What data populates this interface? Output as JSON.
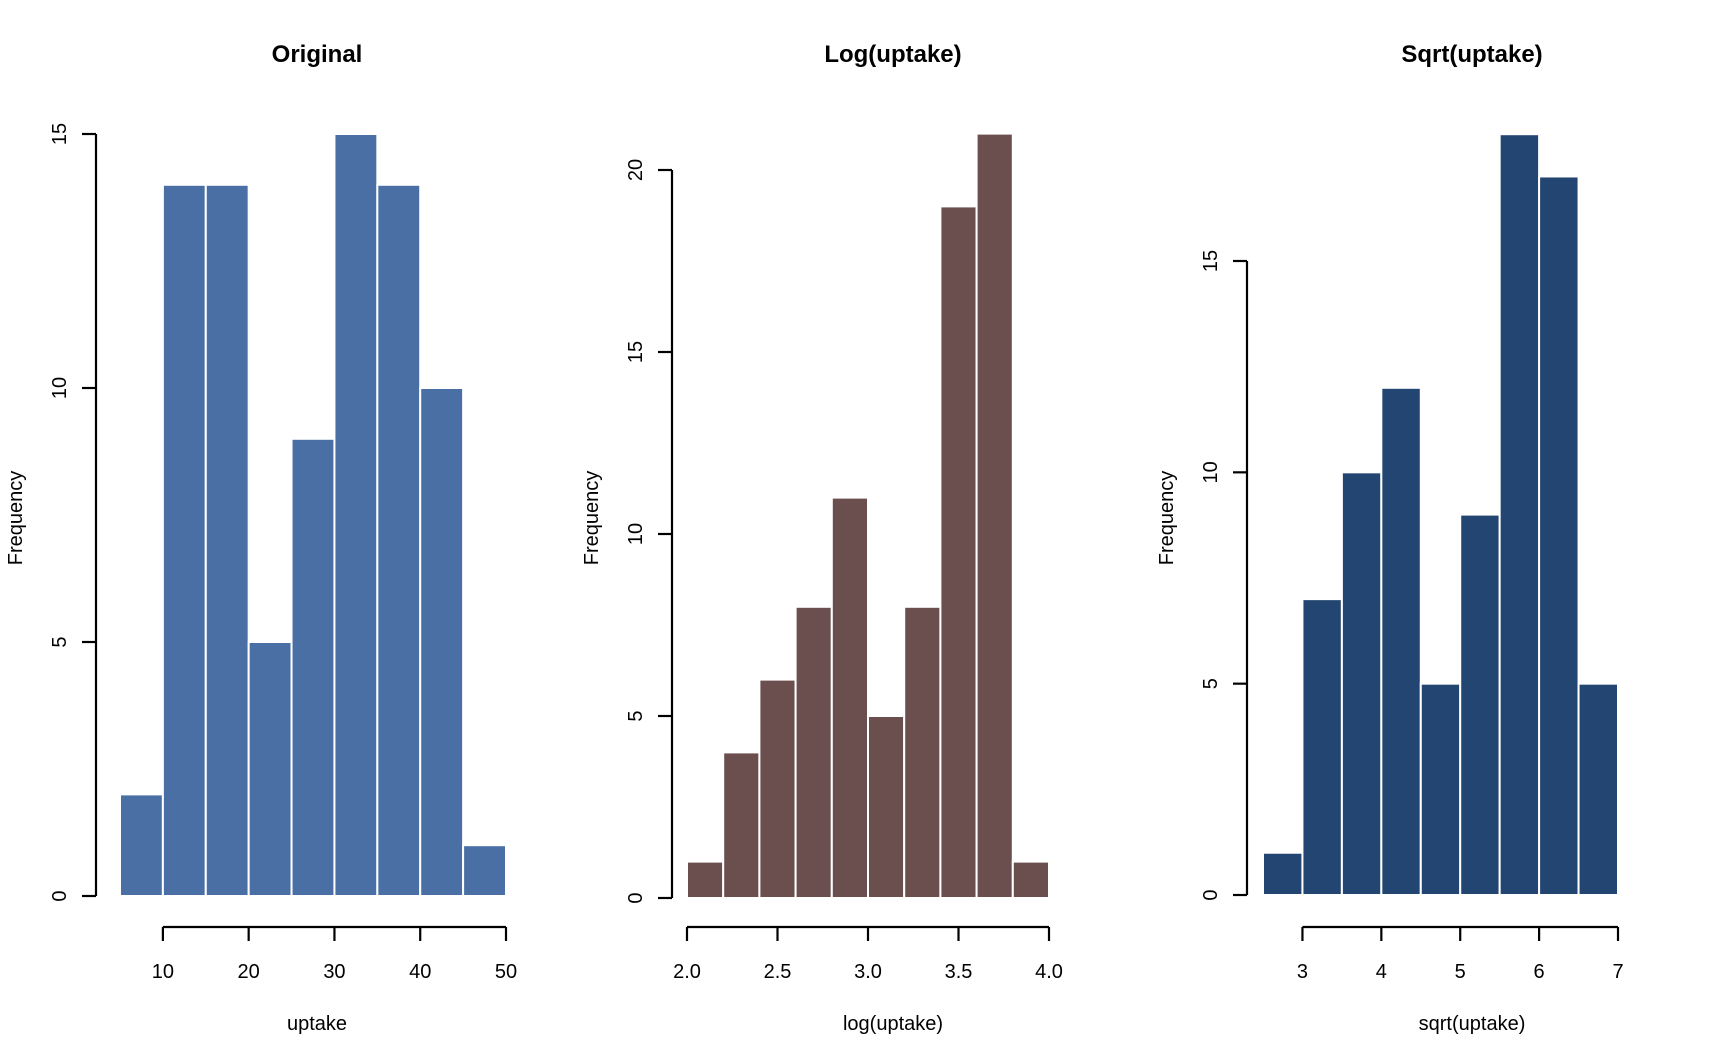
{
  "chart_data": [
    {
      "type": "bar",
      "subtype": "histogram",
      "title": "Original",
      "xlabel": "uptake",
      "ylabel": "Frequency",
      "color": "#4a6fa5",
      "bin_edges": [
        5,
        10,
        15,
        20,
        25,
        30,
        35,
        40,
        45,
        50
      ],
      "values": [
        2,
        14,
        14,
        5,
        9,
        15,
        14,
        10,
        1
      ],
      "xlim": [
        5,
        50
      ],
      "ylim": [
        0,
        15
      ],
      "xticks": [
        10,
        20,
        30,
        40,
        50
      ],
      "xtick_labels": [
        "10",
        "20",
        "30",
        "40",
        "50"
      ],
      "yticks": [
        0,
        5,
        10,
        15
      ],
      "ytick_labels": [
        "0",
        "5",
        "10",
        "15"
      ],
      "grid": false
    },
    {
      "type": "bar",
      "subtype": "histogram",
      "title": "Log(uptake)",
      "xlabel": "log(uptake)",
      "ylabel": "Frequency",
      "color": "#6b4f4f",
      "bin_edges": [
        2.0,
        2.2,
        2.4,
        2.6,
        2.8,
        3.0,
        3.2,
        3.4,
        3.6,
        3.8,
        4.0
      ],
      "values": [
        1,
        4,
        6,
        8,
        11,
        5,
        8,
        19,
        21,
        1
      ],
      "xlim": [
        2.0,
        4.0
      ],
      "ylim": [
        0,
        21
      ],
      "xticks": [
        2.0,
        2.5,
        3.0,
        3.5,
        4.0
      ],
      "xtick_labels": [
        "2.0",
        "2.5",
        "3.0",
        "3.5",
        "4.0"
      ],
      "yticks": [
        0,
        5,
        10,
        15,
        20
      ],
      "ytick_labels": [
        "0",
        "5",
        "10",
        "15",
        "20"
      ],
      "grid": false
    },
    {
      "type": "bar",
      "subtype": "histogram",
      "title": "Sqrt(uptake)",
      "xlabel": "sqrt(uptake)",
      "ylabel": "Frequency",
      "color": "#234571",
      "bin_edges": [
        2.5,
        3.0,
        3.5,
        4.0,
        4.5,
        5.0,
        5.5,
        6.0,
        6.5,
        7.0
      ],
      "values": [
        1,
        7,
        10,
        12,
        5,
        9,
        18,
        17,
        5
      ],
      "xlim": [
        2.5,
        7.0
      ],
      "ylim": [
        0,
        18
      ],
      "xticks": [
        3,
        4,
        5,
        6,
        7
      ],
      "xtick_labels": [
        "3",
        "4",
        "5",
        "6",
        "7"
      ],
      "yticks": [
        0,
        5,
        10,
        15
      ],
      "ytick_labels": [
        "0",
        "5",
        "10",
        "15"
      ],
      "grid": false
    }
  ]
}
